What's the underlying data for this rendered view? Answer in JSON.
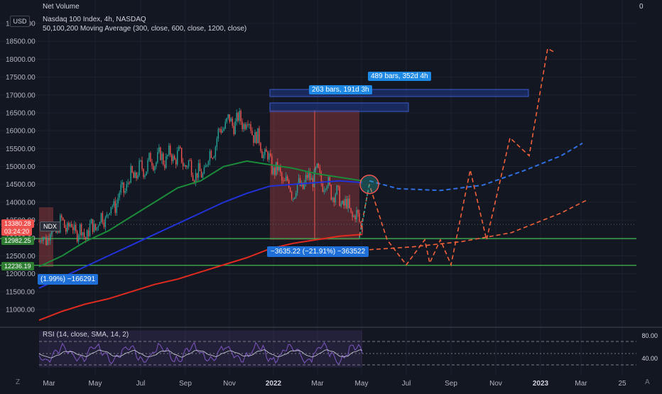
{
  "header": {
    "currency": "USD",
    "net_volume_label": "Net Volume",
    "net_volume_value": "0",
    "symbol_line": "Nasdaq 100 Index, 4h, NASDAQ",
    "ma_line": "50,100,200 Moving Average (300, close, 600, close, 1200, close)",
    "rsi_label": "RSI (14, close, SMA, 14, 2)"
  },
  "price_axis": {
    "ticks": [
      "19000.00",
      "18500.00",
      "18000.00",
      "17500.00",
      "17000.00",
      "16500.00",
      "16000.00",
      "15500.00",
      "15000.00",
      "14500.00",
      "14000.00",
      "13500.00",
      "13000.00",
      "12500.00",
      "12000.00",
      "11500.00",
      "11000.00"
    ],
    "values": [
      19000,
      18500,
      18000,
      17500,
      17000,
      16500,
      16000,
      15500,
      15000,
      14500,
      14000,
      13500,
      13000,
      12500,
      12000,
      11500,
      11000
    ],
    "range": [
      10700,
      19100
    ]
  },
  "markers": {
    "symbol_tag": "NDX",
    "price_tag": "13380.28",
    "countdown_tag": "03:24:20",
    "level_upper": "12982.25",
    "level_lower": "12236.19"
  },
  "rsi_axis": {
    "high": "80.00",
    "low": "40.00"
  },
  "time_axis": {
    "labels": [
      "Mar",
      "May",
      "Jul",
      "Sep",
      "Nov",
      "2022",
      "Mar",
      "May",
      "Jul",
      "Sep",
      "Nov",
      "2023",
      "Mar",
      "25"
    ],
    "bold_labels": [
      "2022",
      "2023"
    ]
  },
  "annotations": {
    "range_long": "489 bars, 352d 4h",
    "range_short": "263 bars, 191d 3h",
    "price_drop": "−3635.22 (−21.91%) −363522",
    "left_partial": "(1.99%) −166291"
  },
  "corner": {
    "tv_logo": "Z",
    "scale_auto": "A"
  },
  "colors": {
    "background": "#131722",
    "up": "#26a69a",
    "down": "#ef5350",
    "ma_50": "#1b8a3a",
    "ma_100": "#2132d8",
    "ma_200": "#e02a1f",
    "projection_orange": "#f0603a",
    "projection_blue": "#2f6fe0",
    "level_line": "#3fb950",
    "rsi_line": "#7e57c2",
    "callout": "#1e88e5"
  },
  "chart_data": {
    "type": "line",
    "title": "Nasdaq 100 Index, 4h, NASDAQ",
    "xlabel": "",
    "ylabel": "",
    "ylim": [
      10700,
      19100
    ],
    "x": [
      "2021-03",
      "2021-04",
      "2021-05",
      "2021-06",
      "2021-07",
      "2021-08",
      "2021-09",
      "2021-10",
      "2021-11",
      "2021-12",
      "2022-01",
      "2022-02",
      "2022-03",
      "2022-04",
      "2022-05"
    ],
    "series": [
      {
        "name": "NDX",
        "values": [
          12900,
          13400,
          13100,
          13700,
          14700,
          15200,
          15300,
          14700,
          16200,
          16300,
          15100,
          14300,
          14800,
          14100,
          13380
        ]
      },
      {
        "values": [
          12200,
          12500,
          12900,
          13200,
          13600,
          14000,
          14400,
          14600,
          15000,
          15150,
          15050,
          14950,
          14800,
          14700,
          14600
        ]
      },
      {
        "values": [
          11600,
          11900,
          12200,
          12500,
          12800,
          13100,
          13400,
          13700,
          14000,
          14250,
          14450,
          14500,
          14550,
          14600,
          14550
        ]
      },
      {
        "values": [
          10700,
          10950,
          11150,
          11300,
          11500,
          11700,
          11850,
          12050,
          12250,
          12450,
          12700,
          12850,
          12950,
          13050,
          13100
        ]
      }
    ],
    "levels": [
      12982.25,
      12236.19
    ],
    "rsi": {
      "ylim": [
        20,
        85
      ],
      "guides": [
        80,
        40
      ]
    }
  }
}
